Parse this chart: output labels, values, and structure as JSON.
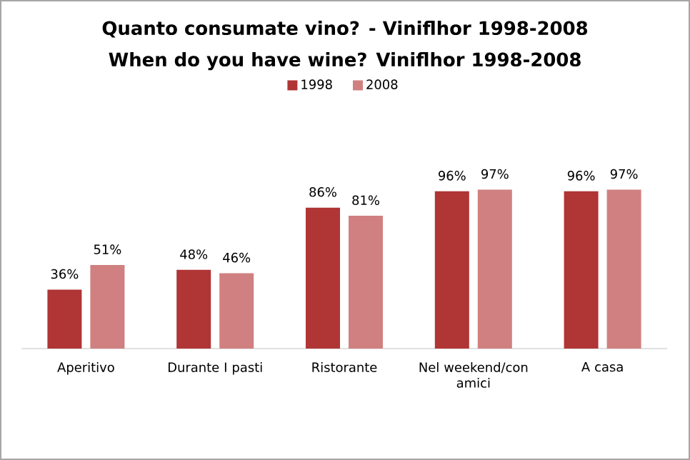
{
  "chart_data": {
    "type": "bar",
    "title": "Quanto consumate vino? - Viniflhor 1998-2008",
    "subtitle": "When do you have wine? Viniflhor 1998-2008",
    "categories": [
      "Aperitivo",
      "Durante I pasti",
      "Ristorante",
      "Nel weekend/con amici",
      "A casa"
    ],
    "series": [
      {
        "name": "1998",
        "color": "#b03535",
        "values": [
          36,
          48,
          86,
          96,
          96
        ],
        "value_labels": [
          "36%",
          "48%",
          "86%",
          "96%",
          "96%"
        ]
      },
      {
        "name": "2008",
        "color": "#d08080",
        "values": [
          51,
          46,
          81,
          97,
          97
        ],
        "value_labels": [
          "51%",
          "46%",
          "81%",
          "97%",
          "97%"
        ]
      }
    ],
    "legend": "top",
    "grid": false
  }
}
